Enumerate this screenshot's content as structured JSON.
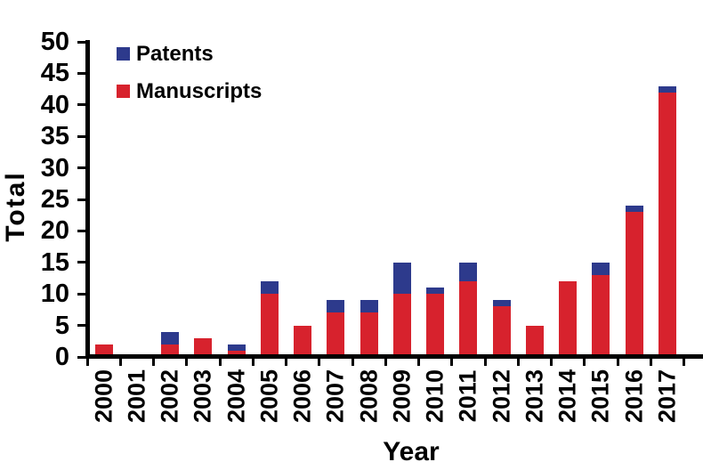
{
  "chart_data": {
    "type": "bar",
    "stacked": true,
    "title": "",
    "xlabel": "Year",
    "ylabel": "Total",
    "categories": [
      "2000",
      "2001",
      "2002",
      "2003",
      "2004",
      "2005",
      "2006",
      "2007",
      "2008",
      "2009",
      "2010",
      "2011",
      "2012",
      "2013",
      "2014",
      "2015",
      "2016",
      "2017"
    ],
    "series": [
      {
        "name": "Patents",
        "color": "#2D3A8C",
        "values": [
          0,
          0,
          2,
          0,
          1,
          2,
          0,
          2,
          2,
          5,
          1,
          3,
          1,
          0,
          0,
          2,
          1,
          1
        ]
      },
      {
        "name": "Manuscripts",
        "color": "#D7222D",
        "values": [
          2,
          0,
          2,
          3,
          1,
          10,
          5,
          7,
          7,
          10,
          10,
          12,
          8,
          5,
          12,
          13,
          23,
          42
        ]
      }
    ],
    "ylim": [
      0,
      50
    ],
    "yticks": [
      0,
      5,
      10,
      15,
      20,
      25,
      30,
      35,
      40,
      45,
      50
    ],
    "grid": false,
    "legend_position": "top-left",
    "axis_color": "#000000",
    "background": "#FFFFFF"
  }
}
